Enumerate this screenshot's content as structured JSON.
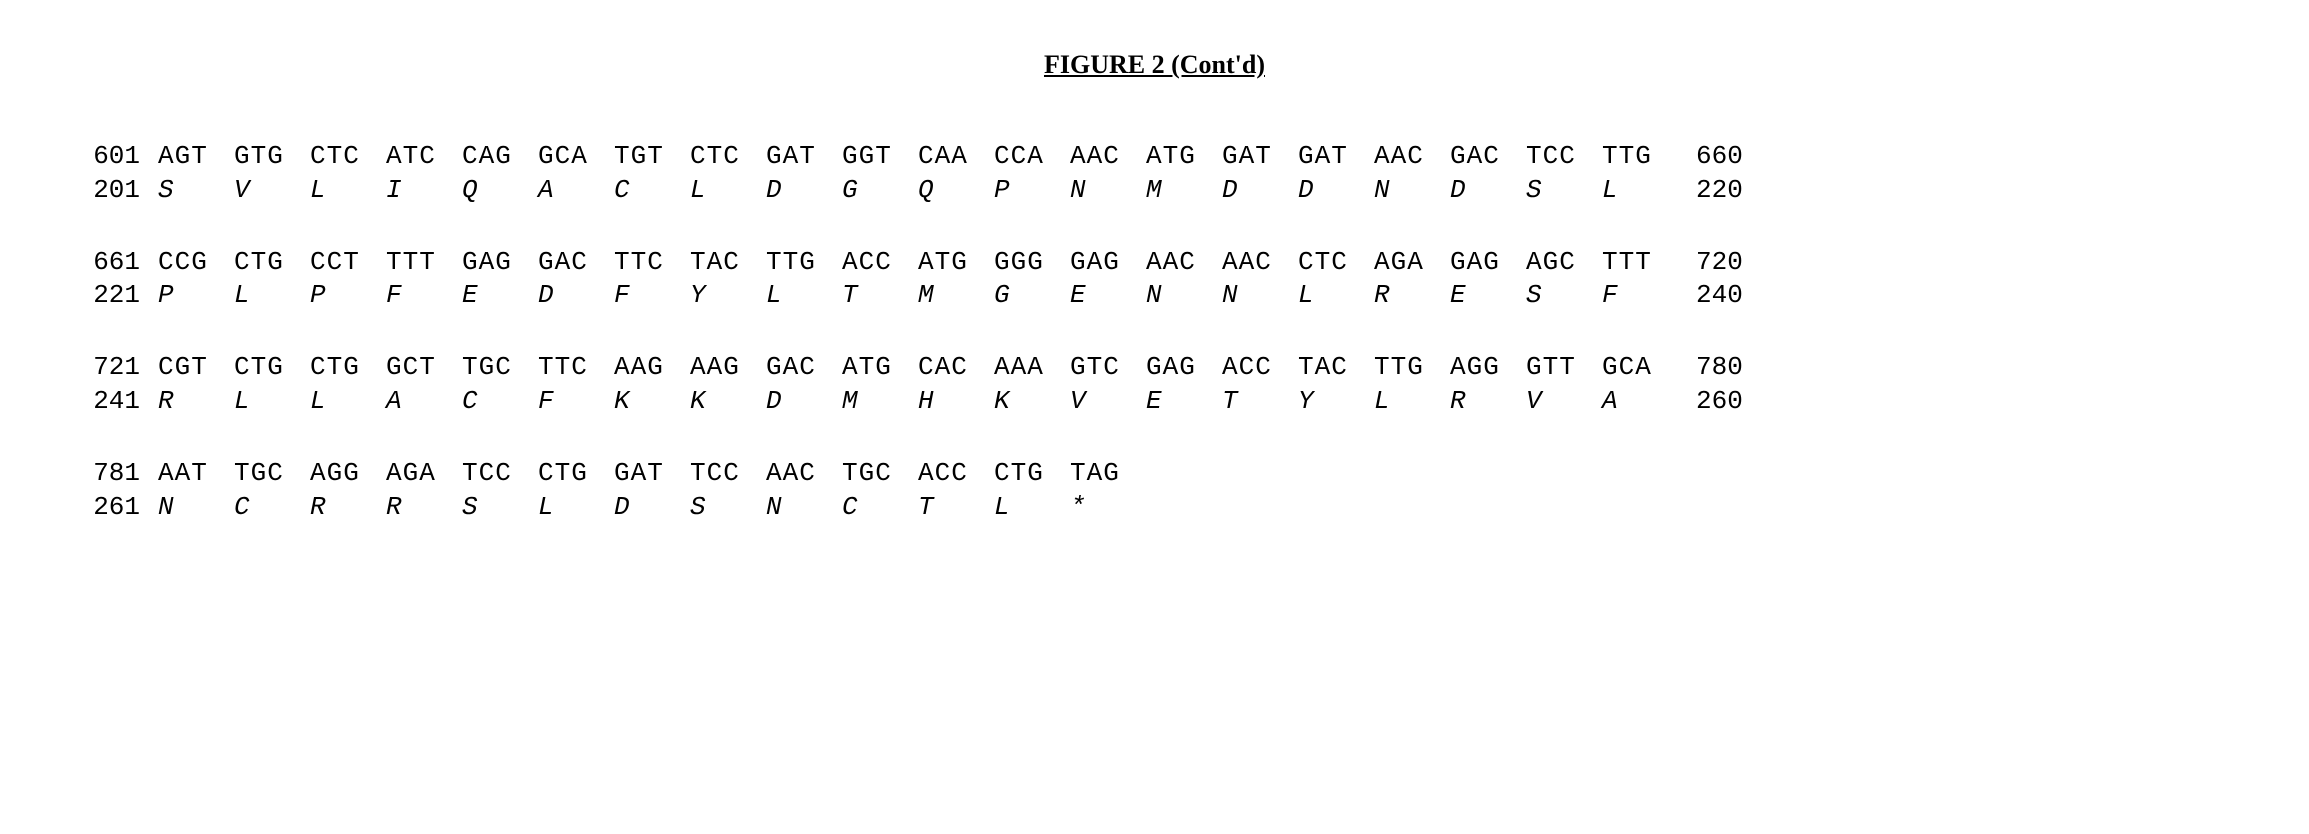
{
  "title": "FIGURE 2 (Cont'd)",
  "blocks": [
    {
      "nuc_start": "601",
      "nuc_end": "660",
      "aa_start": "201",
      "aa_end": "220",
      "codons": [
        "AGT",
        "GTG",
        "CTC",
        "ATC",
        "CAG",
        "GCA",
        "TGT",
        "CTC",
        "GAT",
        "GGT",
        "CAA",
        "CCA",
        "AAC",
        "ATG",
        "GAT",
        "GAT",
        "AAC",
        "GAC",
        "TCC",
        "TTG"
      ],
      "aas": [
        "S",
        "V",
        "L",
        "I",
        "Q",
        "A",
        "C",
        "L",
        "D",
        "G",
        "Q",
        "P",
        "N",
        "M",
        "D",
        "D",
        "N",
        "D",
        "S",
        "L"
      ]
    },
    {
      "nuc_start": "661",
      "nuc_end": "720",
      "aa_start": "221",
      "aa_end": "240",
      "codons": [
        "CCG",
        "CTG",
        "CCT",
        "TTT",
        "GAG",
        "GAC",
        "TTC",
        "TAC",
        "TTG",
        "ACC",
        "ATG",
        "GGG",
        "GAG",
        "AAC",
        "AAC",
        "CTC",
        "AGA",
        "GAG",
        "AGC",
        "TTT"
      ],
      "aas": [
        "P",
        "L",
        "P",
        "F",
        "E",
        "D",
        "F",
        "Y",
        "L",
        "T",
        "M",
        "G",
        "E",
        "N",
        "N",
        "L",
        "R",
        "E",
        "S",
        "F"
      ]
    },
    {
      "nuc_start": "721",
      "nuc_end": "780",
      "aa_start": "241",
      "aa_end": "260",
      "codons": [
        "CGT",
        "CTG",
        "CTG",
        "GCT",
        "TGC",
        "TTC",
        "AAG",
        "AAG",
        "GAC",
        "ATG",
        "CAC",
        "AAA",
        "GTC",
        "GAG",
        "ACC",
        "TAC",
        "TTG",
        "AGG",
        "GTT",
        "GCA"
      ],
      "aas": [
        "R",
        "L",
        "L",
        "A",
        "C",
        "F",
        "K",
        "K",
        "D",
        "M",
        "H",
        "K",
        "V",
        "E",
        "T",
        "Y",
        "L",
        "R",
        "V",
        "A"
      ]
    },
    {
      "nuc_start": "781",
      "nuc_end": "",
      "aa_start": "261",
      "aa_end": "",
      "codons": [
        "AAT",
        "TGC",
        "AGG",
        "AGA",
        "TCC",
        "CTG",
        "GAT",
        "TCC",
        "AAC",
        "TGC",
        "ACC",
        "CTG",
        "TAG"
      ],
      "aas": [
        "N",
        "C",
        "R",
        "R",
        "S",
        "L",
        "D",
        "S",
        "N",
        "C",
        "T",
        "L",
        "*"
      ]
    }
  ]
}
